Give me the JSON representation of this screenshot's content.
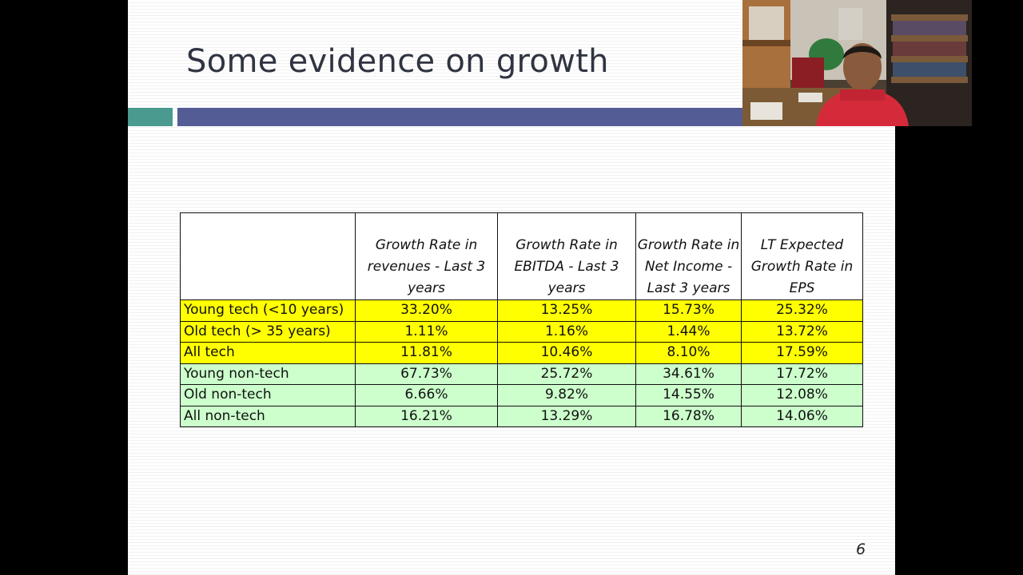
{
  "slide": {
    "title": "Some evidence on growth",
    "page_number": "6"
  },
  "table": {
    "headers": [
      "",
      "Growth Rate in revenues - Last 3 years",
      "Growth Rate in EBITDA - Last 3 years",
      "Growth Rate in Net Income - Last 3 years",
      "LT Expected Growth Rate in EPS"
    ],
    "rows": [
      {
        "label": "Young tech (<10 years)",
        "values": [
          "33.20%",
          "13.25%",
          "15.73%",
          "25.32%"
        ]
      },
      {
        "label": "Old tech (> 35 years)",
        "values": [
          "1.11%",
          "1.16%",
          "1.44%",
          "13.72%"
        ]
      },
      {
        "label": "All tech",
        "values": [
          "11.81%",
          "10.46%",
          "8.10%",
          "17.59%"
        ]
      },
      {
        "label": "Young non-tech",
        "values": [
          "67.73%",
          "25.72%",
          "34.61%",
          "17.72%"
        ]
      },
      {
        "label": "Old non-tech",
        "values": [
          "6.66%",
          "9.82%",
          "14.55%",
          "12.08%"
        ]
      },
      {
        "label": "All non-tech",
        "values": [
          "16.21%",
          "13.29%",
          "16.78%",
          "14.06%"
        ]
      }
    ]
  },
  "colors": {
    "tech_row": "#ffff00",
    "non_tech_row": "#ccffcc",
    "accent_teal": "#4a9a8f",
    "accent_blue": "#545c95"
  }
}
